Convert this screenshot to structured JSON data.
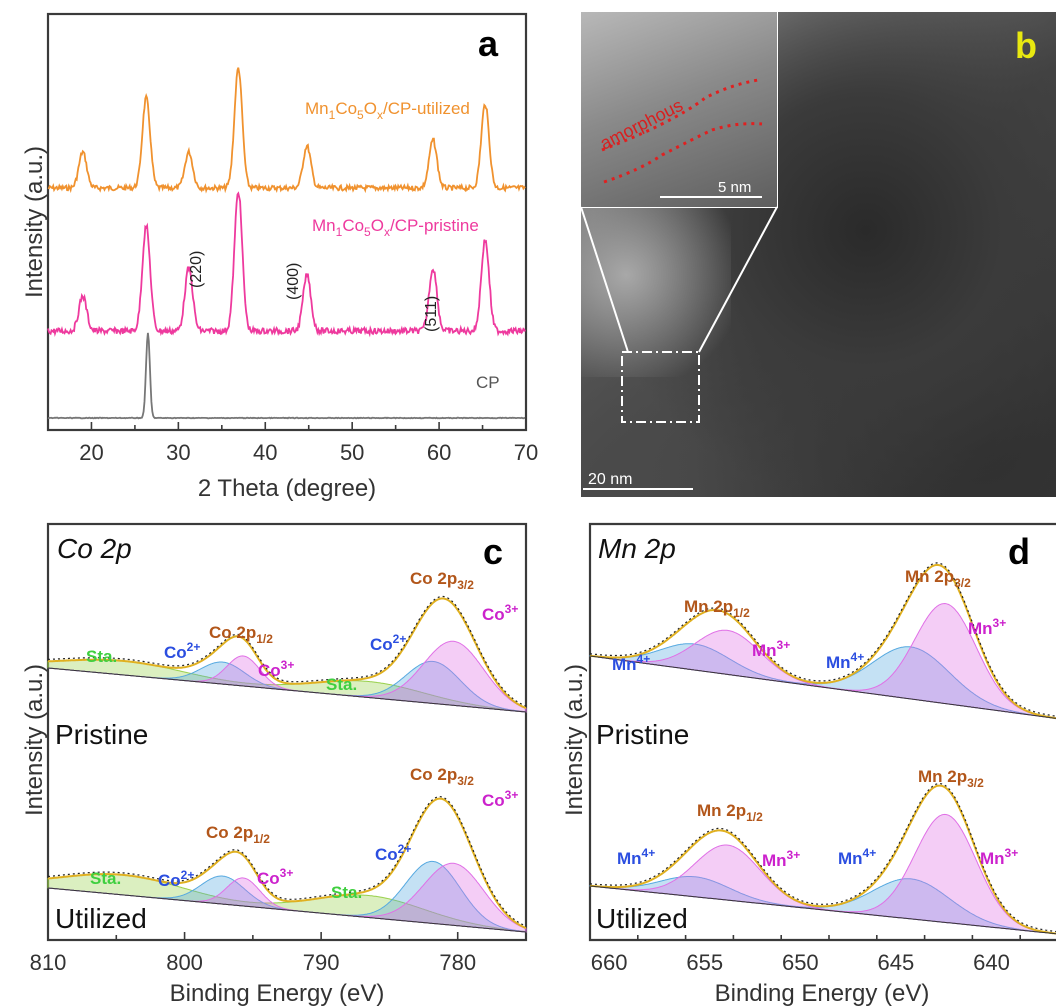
{
  "panels": {
    "a": {
      "letter": "a",
      "ylabel": "Intensity (a.u.)",
      "xlabel": "2 Theta (degree)",
      "series_labels": {
        "utilized": {
          "main": "Mn",
          "s1": "1",
          "m2": "Co",
          "s2": "5",
          "m3": "O",
          "s3": "x",
          "tail": "/CP-utilized"
        },
        "pristine": {
          "main": "Mn",
          "s1": "1",
          "m2": "Co",
          "s2": "5",
          "m3": "O",
          "s3": "x",
          "tail": "/CP-pristine"
        },
        "cp": "CP"
      },
      "peak_labels": [
        "(220)",
        "(400)",
        "(511)"
      ]
    },
    "b": {
      "letter": "b",
      "inset_label": "amorphous",
      "inset_scale": "5 nm",
      "scale": "20 nm"
    },
    "c": {
      "letter": "c",
      "element": "Co 2p",
      "ylabel": "Intensity (a.u.)",
      "xlabel": "Binding Energy (eV)",
      "state_top": "Pristine",
      "state_bottom": "Utilized",
      "lbl_sat": "Sta.",
      "lbl_co2": "Co",
      "sup_2": "2+",
      "lbl_co3": "Co",
      "sup_3": "3+",
      "lbl_2p": "Co 2p",
      "sub_12": "1/2",
      "sub_32": "3/2"
    },
    "d": {
      "letter": "d",
      "element": "Mn 2p",
      "ylabel": "Intensity (a.u.)",
      "xlabel": "Binding Energy (eV)",
      "state_top": "Pristine",
      "state_bottom": "Utilized",
      "lbl_mn4": "Mn",
      "sup_4": "4+",
      "lbl_mn3": "Mn",
      "sup_3": "3+",
      "lbl_2p": "Mn 2p",
      "sub_12": "1/2",
      "sub_32": "3/2"
    }
  },
  "colors": {
    "utilized": "#f0922f",
    "pristine": "#ee3a9e",
    "cp": "#777777",
    "envelope": "#e0b020",
    "co3": "#e070e6",
    "co2": "#56a9e0",
    "sat": "#98d04a",
    "label_orange": "#b2561a",
    "label_blue": "#2b4ee0",
    "label_magenta": "#cc22cc",
    "label_green": "#3fcf3f",
    "yellow_b": "#e8e810"
  },
  "chart_data": [
    {
      "panel": "a",
      "type": "line",
      "xlim": [
        15,
        70
      ],
      "xticks": [
        20,
        30,
        40,
        50,
        60,
        70
      ],
      "series": [
        {
          "peaks": [
            [
              19,
              0.3
            ],
            [
              26.3,
              0.75
            ],
            [
              31.2,
              0.3
            ],
            [
              36.9,
              1.0
            ],
            [
              44.8,
              0.35
            ],
            [
              59.3,
              0.4
            ],
            [
              65.3,
              0.7
            ]
          ]
        },
        {
          "peaks": [
            [
              19,
              0.25
            ],
            [
              26.3,
              0.75
            ],
            [
              31.2,
              0.45
            ],
            [
              36.9,
              1.0
            ],
            [
              44.8,
              0.4
            ],
            [
              59.3,
              0.45
            ],
            [
              65.3,
              0.65
            ]
          ]
        },
        {
          "peaks": [
            [
              26.5,
              1.0
            ]
          ]
        }
      ],
      "peak_positions": [
        31.2,
        44.5,
        59.3
      ]
    },
    {
      "panel": "c",
      "type": "line",
      "xlim": [
        810,
        775
      ],
      "xticks": [
        810,
        800,
        790,
        780
      ],
      "components": {
        "co3": [
          [
            795.7,
            1.2
          ],
          [
            780.3,
            2.2
          ]
        ],
        "co2": [
          [
            797.2,
            1.6
          ],
          [
            781.8,
            2.0
          ]
        ],
        "sat": [
          [
            804.5,
            4.5
          ],
          [
            786.5,
            4.0
          ]
        ]
      }
    },
    {
      "panel": "d",
      "type": "line",
      "xlim": [
        661,
        636
      ],
      "xticks": [
        660,
        655,
        650,
        645,
        640
      ],
      "components": {
        "mn3": [
          [
            653.8,
            1.7
          ],
          [
            642.4,
            1.6
          ]
        ],
        "mn4": [
          [
            655.5,
            1.8
          ],
          [
            644.2,
            2.0
          ]
        ]
      }
    }
  ]
}
